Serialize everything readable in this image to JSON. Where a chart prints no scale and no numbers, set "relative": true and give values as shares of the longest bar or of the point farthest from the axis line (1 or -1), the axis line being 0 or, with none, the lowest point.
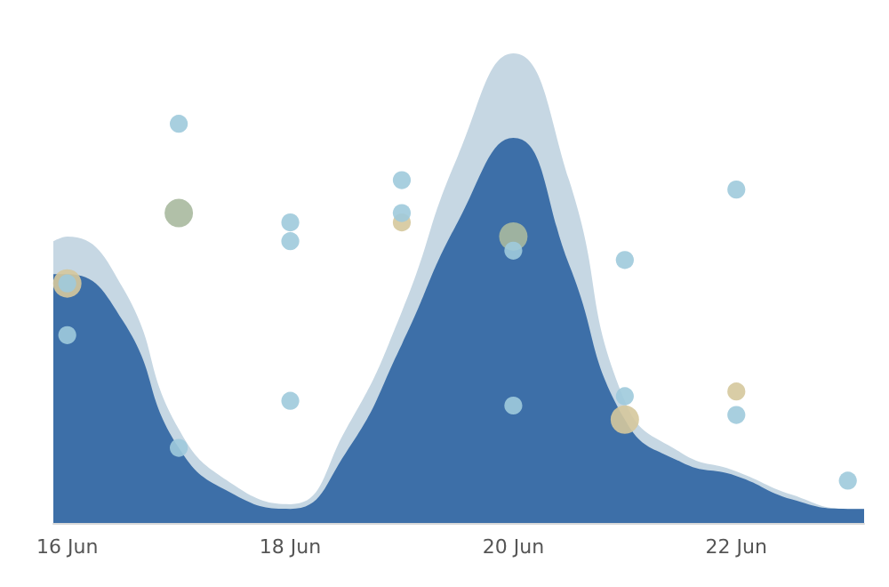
{
  "chart_data": {
    "type": "area",
    "relative": true,
    "xlim": [
      "--06-15T21:00",
      "--06-23T03:30"
    ],
    "xticks": [
      {
        "value": "--06-16",
        "label": "16 Jun"
      },
      {
        "value": "--06-18",
        "label": "18 Jun"
      },
      {
        "value": "--06-20",
        "label": "20 Jun"
      },
      {
        "value": "--06-22",
        "label": "22 Jun"
      }
    ],
    "x": [
      "--06-15T21:00",
      "--06-16",
      "--06-16T12:00",
      "--06-17",
      "--06-17T12:00",
      "--06-18",
      "--06-18T12:00",
      "--06-19",
      "--06-19T12:00",
      "--06-20",
      "--06-20T12:00",
      "--06-21",
      "--06-21T12:00",
      "--06-22",
      "--06-22T12:00",
      "--06-23",
      "--06-23T03:30"
    ],
    "series": [
      {
        "color": "#c6d7e3",
        "values": [
          0.6,
          0.61,
          0.5,
          0.2,
          0.08,
          0.04,
          0.2,
          0.45,
          0.78,
          1.0,
          0.73,
          0.26,
          0.15,
          0.11,
          0.06,
          0.03,
          0.03
        ]
      },
      {
        "color": "#3d6fa8",
        "values": [
          0.53,
          0.53,
          0.43,
          0.16,
          0.06,
          0.03,
          0.15,
          0.38,
          0.64,
          0.82,
          0.55,
          0.22,
          0.13,
          0.1,
          0.05,
          0.03,
          0.03
        ]
      },
      {
        "type": "bubble",
        "color": "#a8b99e",
        "x": [
          "--06-17",
          "--06-20"
        ],
        "values": [
          0.66,
          0.61
        ],
        "sizes": [
          1,
          1
        ]
      },
      {
        "type": "bubble",
        "color": "#d5c89c",
        "x": [
          "--06-16",
          "--06-19",
          "--06-21",
          "--06-22"
        ],
        "values": [
          0.51,
          0.64,
          0.22,
          0.28
        ],
        "sizes": [
          1,
          0.4,
          1,
          0.4
        ]
      },
      {
        "type": "bubble",
        "color": "#9fcadb",
        "x": [
          "--06-16",
          "--06-16",
          "--06-17",
          "--06-17",
          "--06-18",
          "--06-18",
          "--06-18",
          "--06-19",
          "--06-19",
          "--06-20",
          "--06-20",
          "--06-21",
          "--06-21",
          "--06-22",
          "--06-22",
          "--06-23"
        ],
        "values": [
          0.51,
          0.4,
          0.85,
          0.16,
          0.64,
          0.6,
          0.26,
          0.73,
          0.66,
          0.58,
          0.25,
          0.56,
          0.27,
          0.71,
          0.23,
          0.09
        ],
        "sizes": [
          0.4,
          0.4,
          0.4,
          0.4,
          0.4,
          0.4,
          0.4,
          0.4,
          0.4,
          0.4,
          0.4,
          0.4,
          0.4,
          0.4,
          0.4,
          0.4
        ]
      }
    ]
  }
}
